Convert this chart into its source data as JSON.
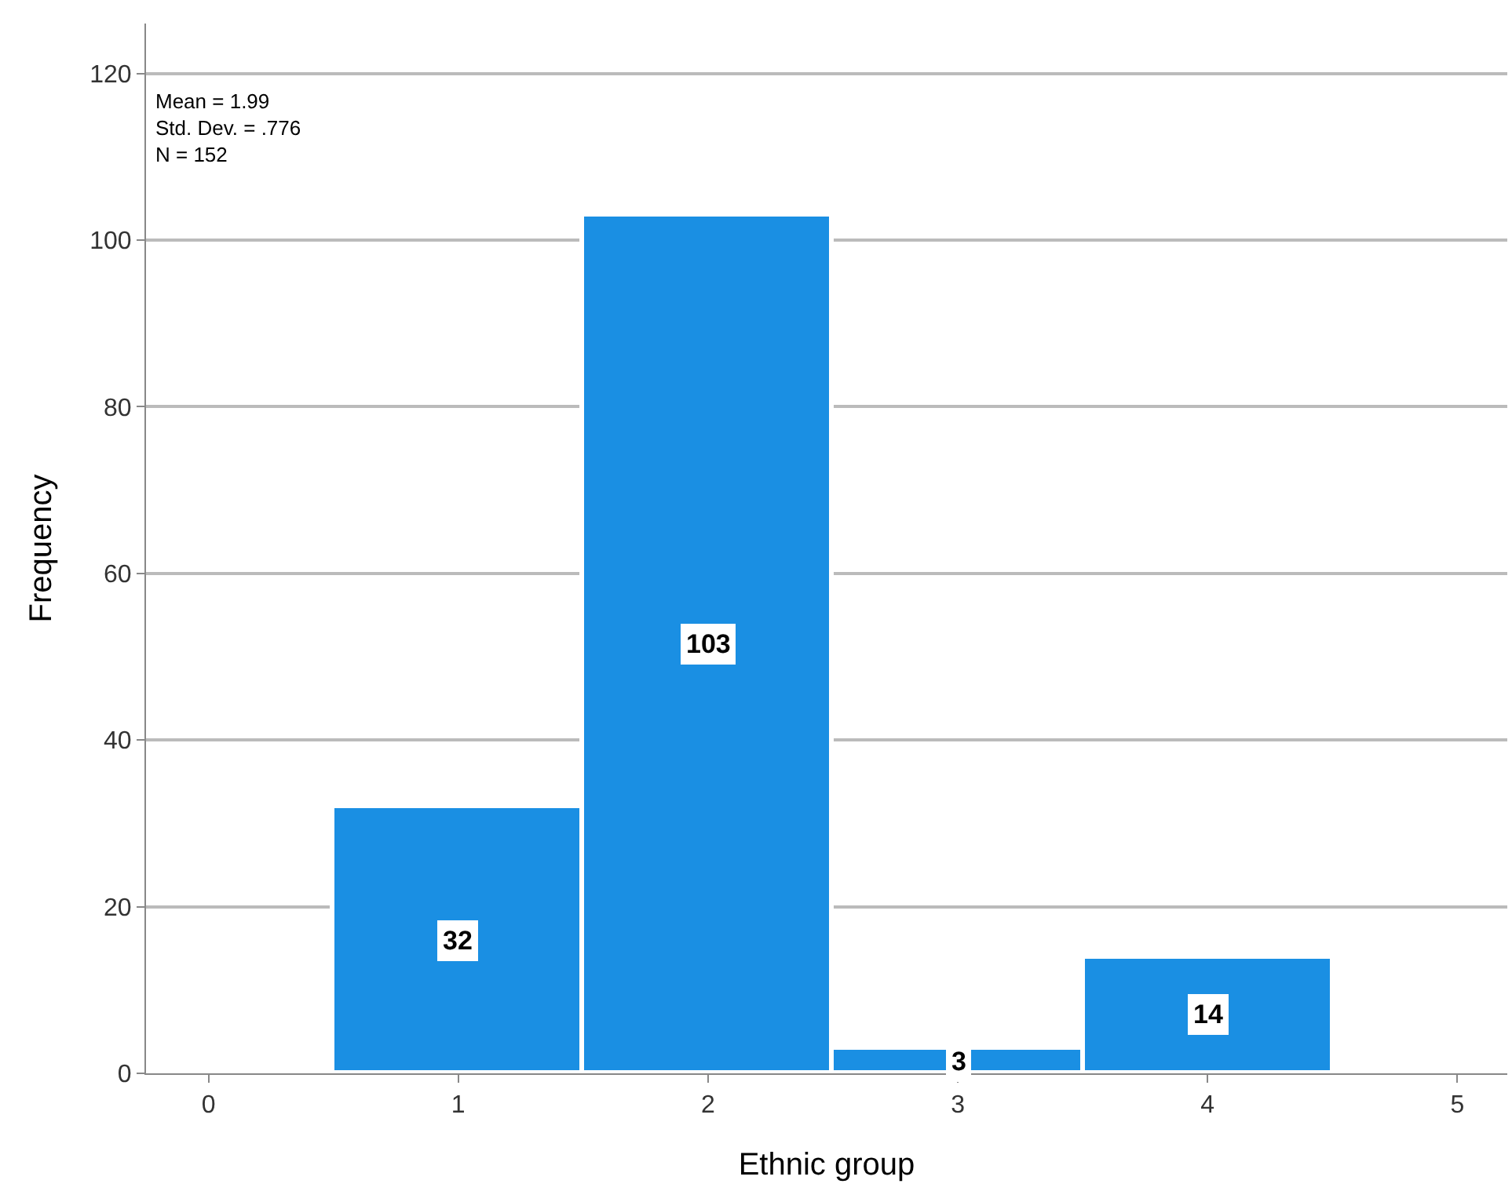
{
  "chart_data": {
    "type": "histogram",
    "xlabel": "Ethnic group",
    "ylabel": "Frequency",
    "bins": [
      0.5,
      1.5,
      2.5,
      3.5,
      4.5
    ],
    "values": [
      32,
      103,
      3,
      14
    ],
    "color": "#1a8fe3",
    "xlim": [
      -0.25,
      5.2
    ],
    "xticks": [
      0,
      1,
      2,
      3,
      4,
      5
    ],
    "ylim": [
      0,
      126
    ],
    "yticks": [
      0,
      20,
      40,
      60,
      80,
      100,
      120
    ],
    "grid": "y",
    "data_labels": true,
    "legend": false,
    "annotations": [
      "Mean = 1.99\nStd. Dev. = .776\nN = 152"
    ]
  }
}
